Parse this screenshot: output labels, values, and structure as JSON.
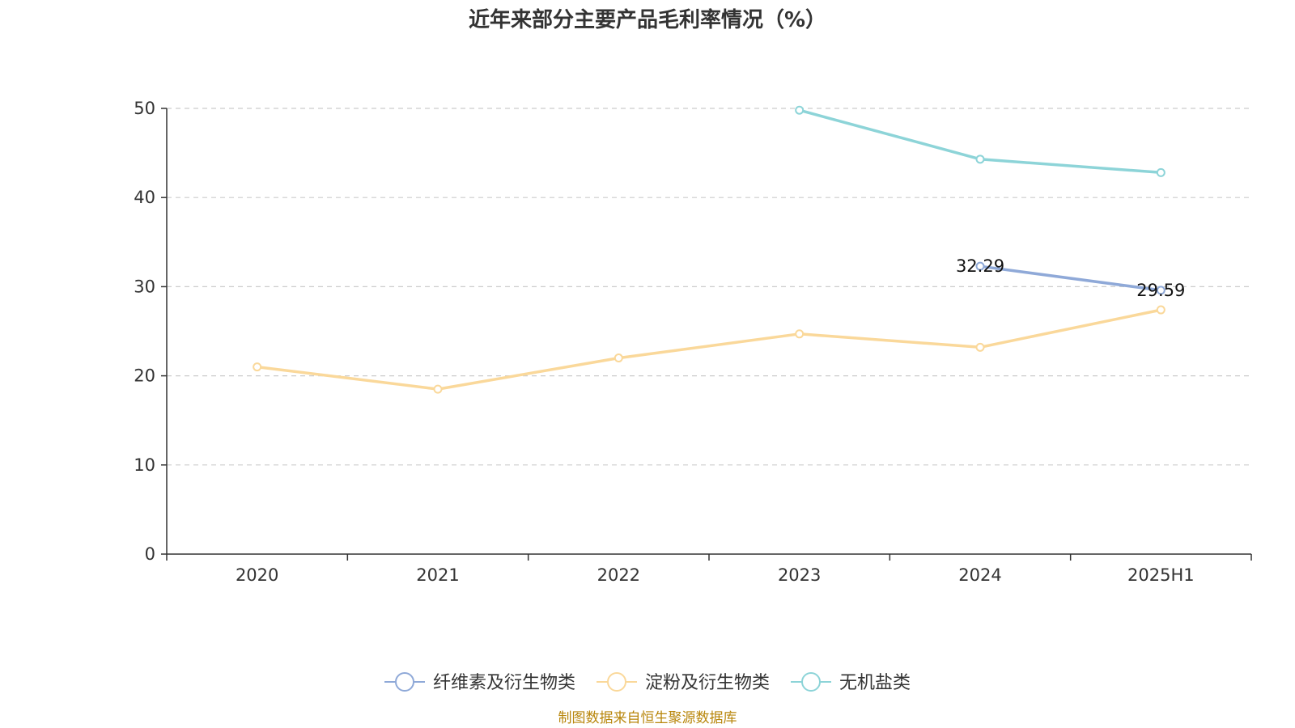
{
  "chart_data": {
    "type": "line",
    "title": "近年来部分主要产品毛利率情况（%）",
    "categories": [
      "2020",
      "2021",
      "2022",
      "2023",
      "2024",
      "2025H1"
    ],
    "ylim": [
      0,
      50
    ],
    "yticks": [
      0,
      10,
      20,
      30,
      40,
      50
    ],
    "grid": true,
    "legend_position": "bottom",
    "series": [
      {
        "name": "纤维素及衍生物类",
        "color": "#8fa9d8",
        "values": [
          null,
          null,
          null,
          null,
          32.29,
          29.59
        ],
        "data_labels": [
          "",
          "",
          "",
          "",
          "32.29",
          "29.59"
        ]
      },
      {
        "name": "淀粉及衍生物类",
        "color": "#fad89a",
        "values": [
          21.0,
          18.5,
          22.0,
          24.7,
          23.2,
          27.4
        ],
        "data_labels": [
          "",
          "",
          "",
          "",
          "",
          ""
        ]
      },
      {
        "name": "无机盐类",
        "color": "#8dd4d8",
        "values": [
          null,
          null,
          null,
          49.8,
          44.3,
          42.8
        ],
        "data_labels": [
          "",
          "",
          "",
          "",
          "",
          ""
        ]
      }
    ]
  },
  "source_note": "制图数据来自恒生聚源数据库"
}
